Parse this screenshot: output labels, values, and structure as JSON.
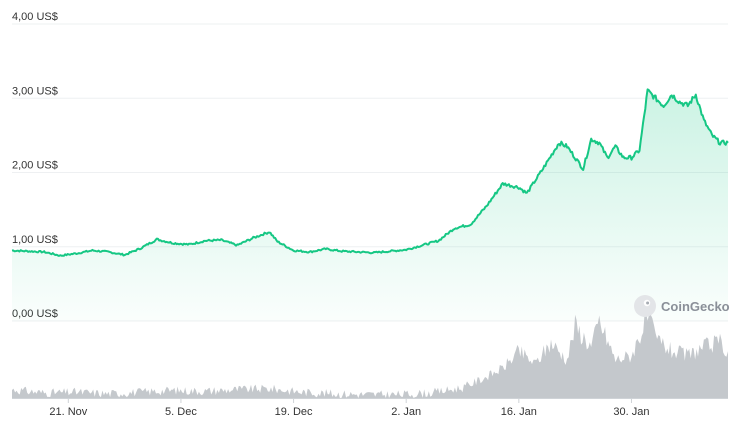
{
  "chart_data": {
    "type": "area",
    "currency_unit": "US$",
    "y_ticks": [
      {
        "value": 0,
        "label": "0,00 US$"
      },
      {
        "value": 1,
        "label": "1,00 US$"
      },
      {
        "value": 2,
        "label": "2,00 US$"
      },
      {
        "value": 3,
        "label": "3,00 US$"
      },
      {
        "value": 4,
        "label": "4,00 US$"
      }
    ],
    "ylim": [
      0,
      4
    ],
    "x_range": [
      "2023-11-14",
      "2024-02-11"
    ],
    "x_ticks": [
      {
        "date": "2023-11-21",
        "label": "21. Nov"
      },
      {
        "date": "2023-12-05",
        "label": "5. Dec"
      },
      {
        "date": "2023-12-19",
        "label": "19. Dec"
      },
      {
        "date": "2024-01-02",
        "label": "2. Jan"
      },
      {
        "date": "2024-01-16",
        "label": "16. Jan"
      },
      {
        "date": "2024-01-30",
        "label": "30. Jan"
      }
    ],
    "grid": true,
    "line_color": "#16c784",
    "fill_color": "#16c784",
    "volume_color": "#c4c8cc",
    "price_series": {
      "dates": [
        "2023-11-14",
        "2023-11-16",
        "2023-11-18",
        "2023-11-20",
        "2023-11-22",
        "2023-11-24",
        "2023-11-26",
        "2023-11-28",
        "2023-11-30",
        "2023-12-02",
        "2023-12-04",
        "2023-12-06",
        "2023-12-08",
        "2023-12-10",
        "2023-12-12",
        "2023-12-14",
        "2023-12-16",
        "2023-12-17",
        "2023-12-19",
        "2023-12-21",
        "2023-12-23",
        "2023-12-25",
        "2023-12-27",
        "2023-12-29",
        "2023-12-31",
        "2024-01-02",
        "2024-01-04",
        "2024-01-06",
        "2024-01-08",
        "2024-01-10",
        "2024-01-12",
        "2024-01-14",
        "2024-01-16",
        "2024-01-17",
        "2024-01-19",
        "2024-01-21",
        "2024-01-22",
        "2024-01-24",
        "2024-01-25",
        "2024-01-26",
        "2024-01-27",
        "2024-01-28",
        "2024-01-29",
        "2024-01-30",
        "2024-01-31",
        "2024-02-01",
        "2024-02-02",
        "2024-02-03",
        "2024-02-04",
        "2024-02-05",
        "2024-02-06",
        "2024-02-07",
        "2024-02-08",
        "2024-02-09",
        "2024-02-10",
        "2024-02-11"
      ],
      "values": [
        0.95,
        0.94,
        0.93,
        0.88,
        0.91,
        0.95,
        0.93,
        0.89,
        0.98,
        1.1,
        1.05,
        1.03,
        1.08,
        1.09,
        1.02,
        1.12,
        1.2,
        1.07,
        0.95,
        0.93,
        0.97,
        0.94,
        0.93,
        0.92,
        0.94,
        0.96,
        1.02,
        1.08,
        1.25,
        1.3,
        1.55,
        1.85,
        1.8,
        1.72,
        2.05,
        2.4,
        2.35,
        2.05,
        2.45,
        2.4,
        2.2,
        2.35,
        2.2,
        2.2,
        2.3,
        3.1,
        3.0,
        2.9,
        3.05,
        2.95,
        2.9,
        3.05,
        2.7,
        2.5,
        2.4,
        2.4
      ]
    },
    "volume_series": {
      "dates": [
        "2023-11-14",
        "2023-11-18",
        "2023-11-22",
        "2023-11-26",
        "2023-11-30",
        "2023-12-04",
        "2023-12-08",
        "2023-12-12",
        "2023-12-16",
        "2023-12-20",
        "2023-12-24",
        "2023-12-28",
        "2024-01-01",
        "2024-01-05",
        "2024-01-09",
        "2024-01-12",
        "2024-01-14",
        "2024-01-16",
        "2024-01-18",
        "2024-01-20",
        "2024-01-22",
        "2024-01-23",
        "2024-01-25",
        "2024-01-26",
        "2024-01-28",
        "2024-01-30",
        "2024-02-01",
        "2024-02-02",
        "2024-02-04",
        "2024-02-06",
        "2024-02-08",
        "2024-02-10",
        "2024-02-11"
      ],
      "values": [
        0.1,
        0.06,
        0.07,
        0.05,
        0.07,
        0.09,
        0.08,
        0.1,
        0.11,
        0.07,
        0.05,
        0.04,
        0.04,
        0.06,
        0.12,
        0.25,
        0.35,
        0.55,
        0.4,
        0.65,
        0.45,
        0.85,
        0.6,
        0.9,
        0.45,
        0.5,
        0.95,
        0.7,
        0.55,
        0.5,
        0.6,
        0.65,
        0.55
      ]
    }
  },
  "watermark": {
    "text": "CoinGecko",
    "icon": "gecko-logo-icon"
  }
}
